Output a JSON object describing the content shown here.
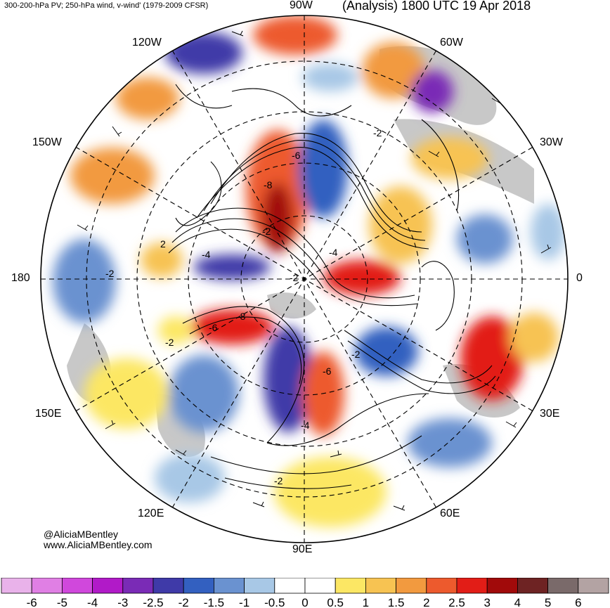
{
  "header": {
    "left_title": "300-200-hPa PV; 250-hPa wind, v-wind' (1979-2009 CFSR)",
    "right_title": "(Analysis) 1800 UTC 19 Apr 2018"
  },
  "credits": {
    "handle": "@AliciaMBentley",
    "website": "www.AliciaMBentley.com"
  },
  "map": {
    "projection": "north-polar-stereographic",
    "longitude_labels": [
      {
        "id": "90w",
        "text": "90W"
      },
      {
        "id": "60w",
        "text": "60W"
      },
      {
        "id": "30w",
        "text": "30W"
      },
      {
        "id": "0",
        "text": "0"
      },
      {
        "id": "30e",
        "text": "30E"
      },
      {
        "id": "60e",
        "text": "60E"
      },
      {
        "id": "90e",
        "text": "90E"
      },
      {
        "id": "120e",
        "text": "120E"
      },
      {
        "id": "150e",
        "text": "150E"
      },
      {
        "id": "180",
        "text": "180"
      },
      {
        "id": "150w",
        "text": "150W"
      },
      {
        "id": "120w",
        "text": "120W"
      }
    ],
    "contour_labels": [
      "-6",
      "-8",
      "-2",
      "-4",
      "-2",
      "2",
      "-4",
      "-2",
      "-6",
      "-8",
      "-2",
      "-2",
      "-6",
      "-4",
      "-2",
      "-2"
    ],
    "colors": {
      "land": "#c8c8c8",
      "contour": "#000000",
      "grid": "#000000"
    }
  },
  "colorbar": {
    "ticks": [
      "-6",
      "-5",
      "-4",
      "-3",
      "-2.5",
      "-2",
      "-1.5",
      "-1",
      "-0.5",
      "0",
      "0.5",
      "1",
      "1.5",
      "2",
      "2.5",
      "3",
      "4",
      "5",
      "6"
    ],
    "colors": [
      "#e9b2ea",
      "#e07fe4",
      "#d048dc",
      "#b11ac8",
      "#7a2bb6",
      "#3f3aa8",
      "#3360c0",
      "#6a92d0",
      "#a8c8e6",
      "#ffffff",
      "#ffffff",
      "#fce764",
      "#f7c352",
      "#f29a3f",
      "#ed5a2d",
      "#e21d17",
      "#a10a0a",
      "#6e2323",
      "#7a6a6a",
      "#b3a3a3"
    ]
  }
}
